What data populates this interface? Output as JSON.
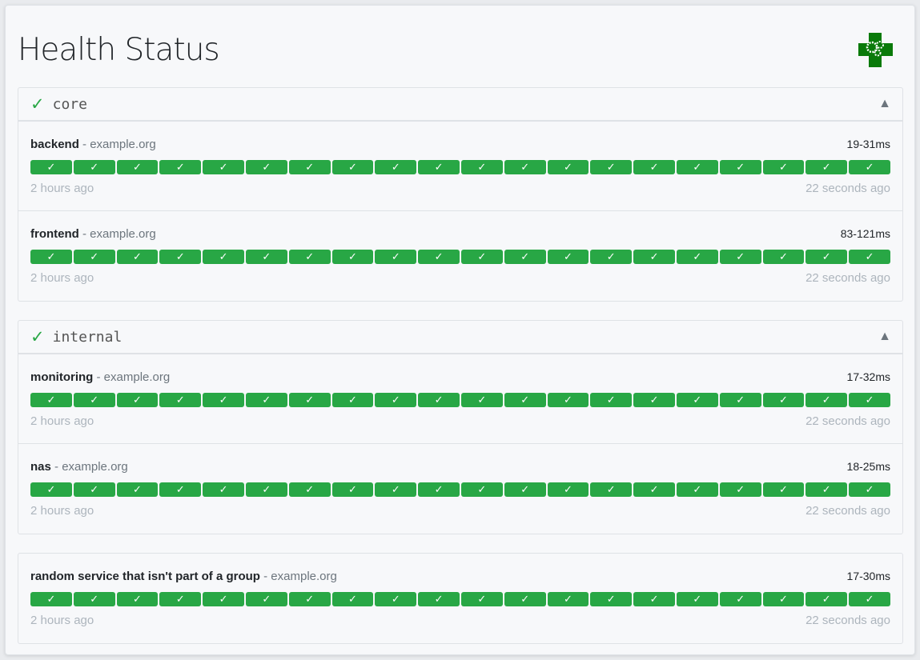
{
  "title": "Health Status",
  "colors": {
    "success": "#28a745",
    "card_bg": "#f7f8fa"
  },
  "logo_icon": "green-cross-gears-icon",
  "groups": [
    {
      "name": "core",
      "status_icon": "✓",
      "toggle_icon": "▲",
      "services": [
        {
          "name": "backend",
          "host": "example.org",
          "response_time": "19-31ms",
          "oldest": "2 hours ago",
          "newest": "22 seconds ago",
          "results": [
            "✓",
            "✓",
            "✓",
            "✓",
            "✓",
            "✓",
            "✓",
            "✓",
            "✓",
            "✓",
            "✓",
            "✓",
            "✓",
            "✓",
            "✓",
            "✓",
            "✓",
            "✓",
            "✓",
            "✓"
          ]
        },
        {
          "name": "frontend",
          "host": "example.org",
          "response_time": "83-121ms",
          "oldest": "2 hours ago",
          "newest": "22 seconds ago",
          "results": [
            "✓",
            "✓",
            "✓",
            "✓",
            "✓",
            "✓",
            "✓",
            "✓",
            "✓",
            "✓",
            "✓",
            "✓",
            "✓",
            "✓",
            "✓",
            "✓",
            "✓",
            "✓",
            "✓",
            "✓"
          ]
        }
      ]
    },
    {
      "name": "internal",
      "status_icon": "✓",
      "toggle_icon": "▲",
      "services": [
        {
          "name": "monitoring",
          "host": "example.org",
          "response_time": "17-32ms",
          "oldest": "2 hours ago",
          "newest": "22 seconds ago",
          "results": [
            "✓",
            "✓",
            "✓",
            "✓",
            "✓",
            "✓",
            "✓",
            "✓",
            "✓",
            "✓",
            "✓",
            "✓",
            "✓",
            "✓",
            "✓",
            "✓",
            "✓",
            "✓",
            "✓",
            "✓"
          ]
        },
        {
          "name": "nas",
          "host": "example.org",
          "response_time": "18-25ms",
          "oldest": "2 hours ago",
          "newest": "22 seconds ago",
          "results": [
            "✓",
            "✓",
            "✓",
            "✓",
            "✓",
            "✓",
            "✓",
            "✓",
            "✓",
            "✓",
            "✓",
            "✓",
            "✓",
            "✓",
            "✓",
            "✓",
            "✓",
            "✓",
            "✓",
            "✓"
          ]
        }
      ]
    },
    {
      "name": "",
      "services": [
        {
          "name": "random service that isn't part of a group",
          "host": "example.org",
          "response_time": "17-30ms",
          "oldest": "2 hours ago",
          "newest": "22 seconds ago",
          "results": [
            "✓",
            "✓",
            "✓",
            "✓",
            "✓",
            "✓",
            "✓",
            "✓",
            "✓",
            "✓",
            "✓",
            "✓",
            "✓",
            "✓",
            "✓",
            "✓",
            "✓",
            "✓",
            "✓",
            "✓"
          ]
        }
      ]
    }
  ]
}
